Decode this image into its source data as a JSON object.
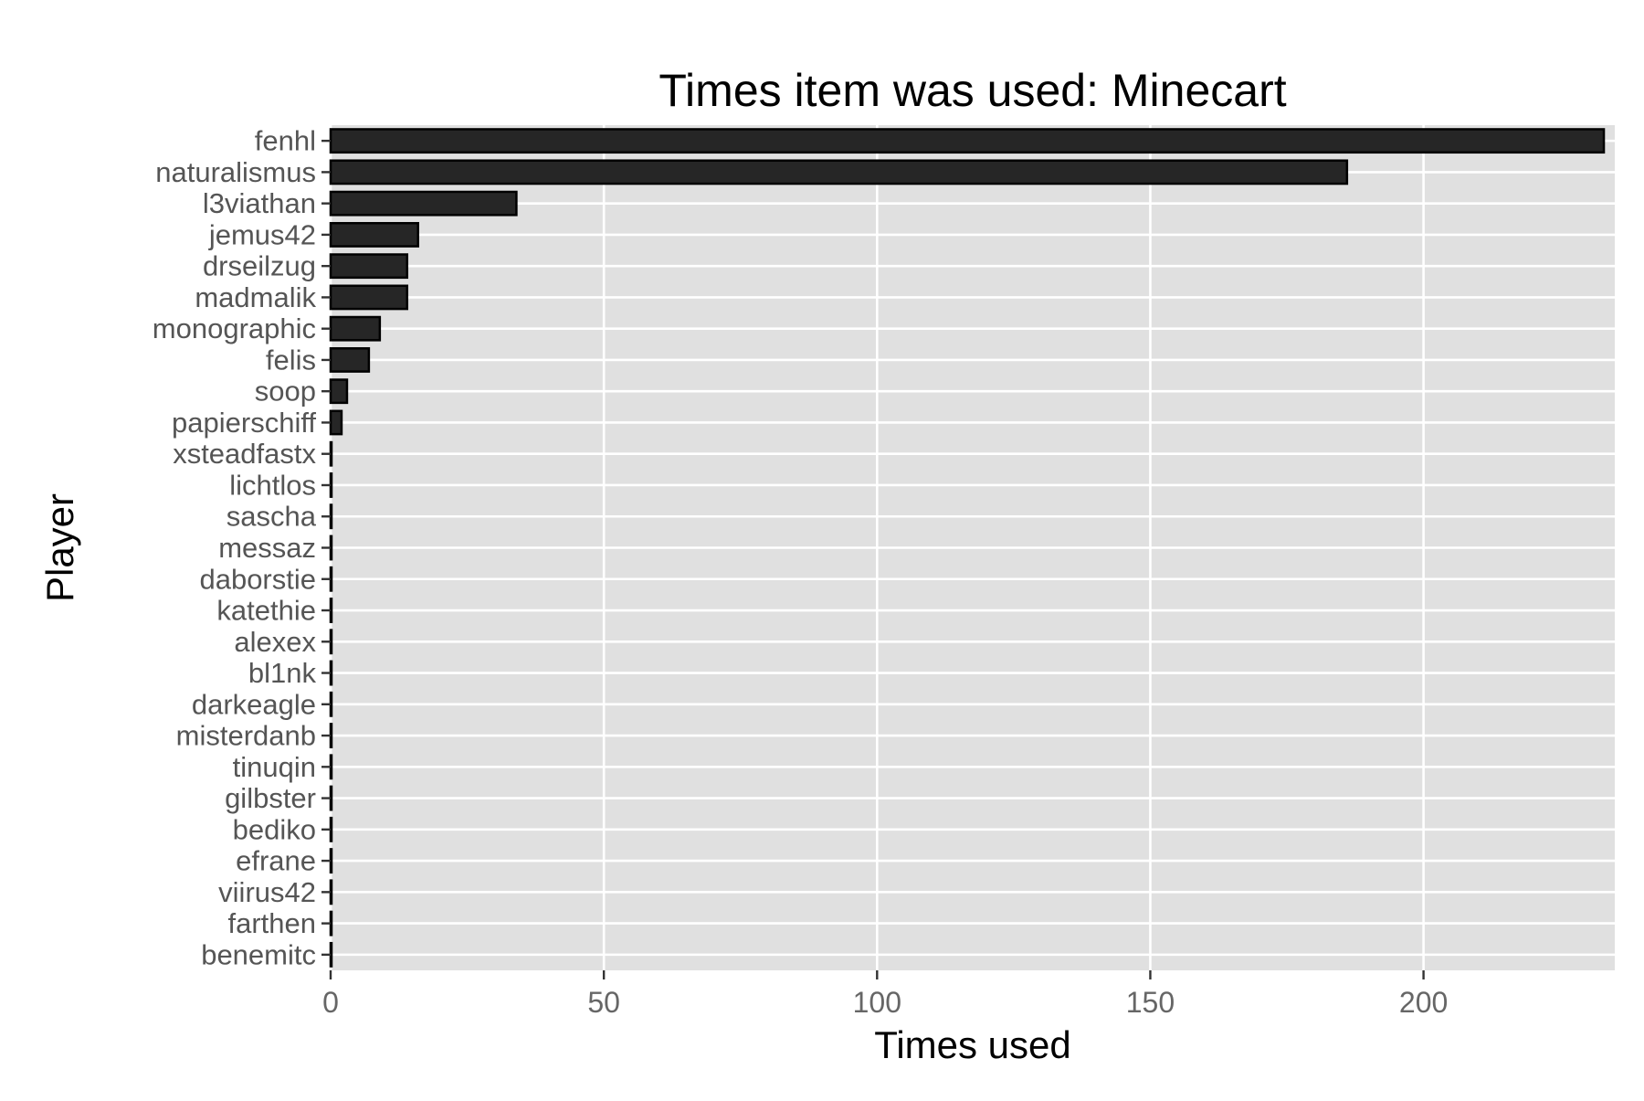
{
  "chart_data": {
    "type": "bar",
    "orientation": "horizontal",
    "title": "Times item was used: Minecart",
    "xlabel": "Times used",
    "ylabel": "Player",
    "xlim": [
      0,
      235
    ],
    "xticks": [
      0,
      50,
      100,
      150,
      200
    ],
    "grid": true,
    "legend": "none",
    "colors": {
      "panel_background": "#e0e0e0",
      "grid": "#ffffff",
      "bar_fill": "#262626",
      "bar_stroke": "#000000"
    },
    "categories": [
      "fenhl",
      "naturalismus",
      "l3viathan",
      "jemus42",
      "drseilzug",
      "madmalik",
      "monographic",
      "felis",
      "soop",
      "papierschiff",
      "xsteadfastx",
      "lichtlos",
      "sascha",
      "messaz",
      "daborstie",
      "katethie",
      "alexex",
      "bl1nk",
      "darkeagle",
      "misterdanb",
      "tinuqin",
      "gilbster",
      "bediko",
      "efrane",
      "viirus42",
      "farthen",
      "benemitc"
    ],
    "values": [
      233,
      186,
      34,
      16,
      14,
      14,
      9,
      7,
      3,
      2,
      0,
      0,
      0,
      0,
      0,
      0,
      0,
      0,
      0,
      0,
      0,
      0,
      0,
      0,
      0,
      0,
      0
    ]
  }
}
